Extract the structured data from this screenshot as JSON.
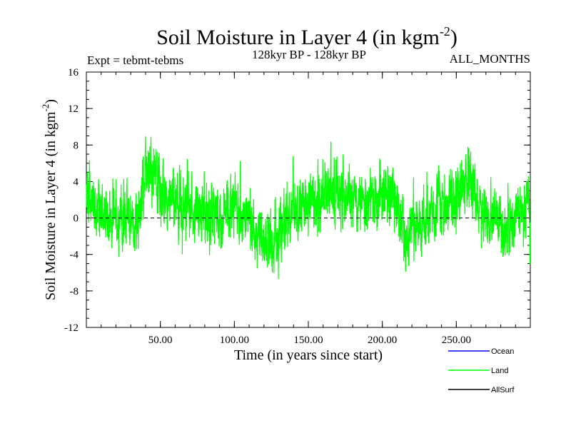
{
  "chart_data": {
    "type": "line",
    "title": "Soil Moisture in Layer 4 (in kgm",
    "title_sup": "-2",
    "title_end": ")",
    "subtitle_left": "Expt = tebmt-tebms",
    "subtitle_center": "128kyr BP - 128kyr BP",
    "subtitle_right": "ALL_MONTHS",
    "xlabel": "Time (in years since start)",
    "ylabel": "Soil Moisture in Layer 4 (in kgm",
    "ylabel_sup": "-2",
    "ylabel_end": ")",
    "xlim": [
      0,
      300
    ],
    "ylim": [
      -12,
      16
    ],
    "x_ticks": [
      50,
      100,
      150,
      200,
      250
    ],
    "x_tick_labels": [
      "50.00",
      "100.00",
      "150.00",
      "200.00",
      "250.00"
    ],
    "y_ticks": [
      -12,
      -8,
      -4,
      0,
      4,
      8,
      12,
      16
    ],
    "y_tick_labels": [
      "-12",
      "-8",
      "-4",
      "0",
      "4",
      "8",
      "12",
      "16"
    ],
    "zero_line": true,
    "series": [
      {
        "name": "Land",
        "color": "#00ff00",
        "envelope_years": [
          0,
          10,
          20,
          28,
          33,
          40,
          46,
          52,
          60,
          70,
          80,
          90,
          100,
          110,
          117,
          121,
          126,
          135,
          145,
          155,
          165,
          175,
          185,
          195,
          203,
          210,
          216,
          225,
          235,
          244,
          250,
          256,
          262,
          270,
          280,
          292,
          300
        ],
        "envelope_values": [
          3,
          0.5,
          0,
          0.5,
          -1,
          5,
          5,
          2,
          2,
          1,
          0.5,
          0.5,
          1,
          0,
          -2,
          -3,
          -2,
          0,
          1,
          2,
          2.5,
          2,
          2,
          2,
          3,
          2,
          -2,
          -1,
          1,
          1,
          3,
          4,
          3,
          0,
          -1,
          0,
          1
        ],
        "amplitude": 3.2,
        "samples": 3600,
        "seed": 128
      },
      {
        "name": "Ocean",
        "color": "#0000ff",
        "values": []
      },
      {
        "name": "AllSurf",
        "color": "#000000",
        "values": []
      }
    ],
    "legend": {
      "placement": "bottom-right",
      "entries": [
        {
          "label": "Ocean",
          "color": "#0000ff"
        },
        {
          "label": "Land",
          "color": "#00ff00"
        },
        {
          "label": "AllSurf",
          "color": "#000000"
        }
      ]
    }
  }
}
